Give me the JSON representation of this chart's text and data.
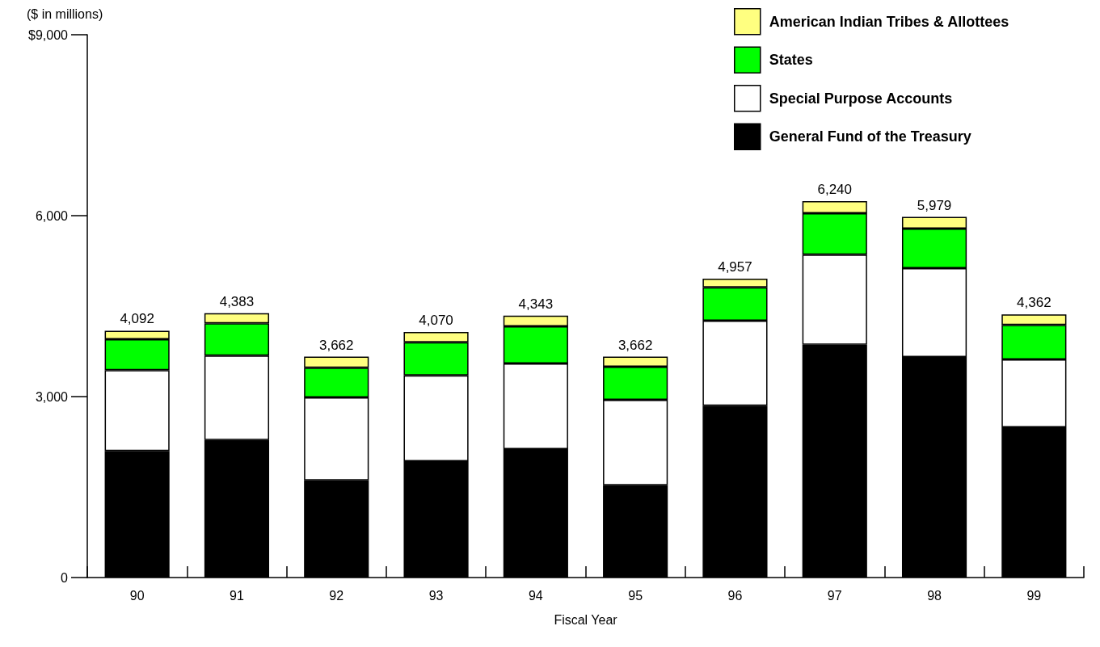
{
  "chart_data": {
    "type": "bar",
    "stacked": true,
    "xlabel": "Fiscal Year",
    "ylabel": "($ in millions)",
    "categories": [
      "90",
      "91",
      "92",
      "93",
      "94",
      "95",
      "96",
      "97",
      "98",
      "99"
    ],
    "series": [
      {
        "name": "General Fund of the Treasury",
        "color": "#000000",
        "values": [
          2100,
          2280,
          1610,
          1930,
          2130,
          1530,
          2850,
          3860,
          3655,
          2490
        ]
      },
      {
        "name": "Special Purpose Accounts",
        "color": "#ffffff",
        "values": [
          1340,
          1400,
          1375,
          1420,
          1420,
          1415,
          1410,
          1495,
          1475,
          1125
        ]
      },
      {
        "name": "States",
        "color": "#00ff00",
        "values": [
          510,
          535,
          495,
          550,
          615,
          550,
          550,
          685,
          655,
          575
        ]
      },
      {
        "name": "American Indian Tribes & Allottees",
        "color": "#ffff80",
        "values": [
          142,
          168,
          182,
          170,
          178,
          167,
          147,
          200,
          194,
          172
        ]
      }
    ],
    "totals": [
      "4,092",
      "4,383",
      "3,662",
      "4,070",
      "4,343",
      "3,662",
      "4,957",
      "6,240",
      "5,979",
      "4,362"
    ],
    "ylim": [
      0,
      9000
    ],
    "yticks": [
      0,
      {
        "value": 3000,
        "label": "3,000"
      },
      {
        "value": 6000,
        "label": "6,000"
      },
      {
        "value": 9000,
        "label": "$9,000"
      }
    ],
    "grid": false,
    "legend": "top right"
  }
}
